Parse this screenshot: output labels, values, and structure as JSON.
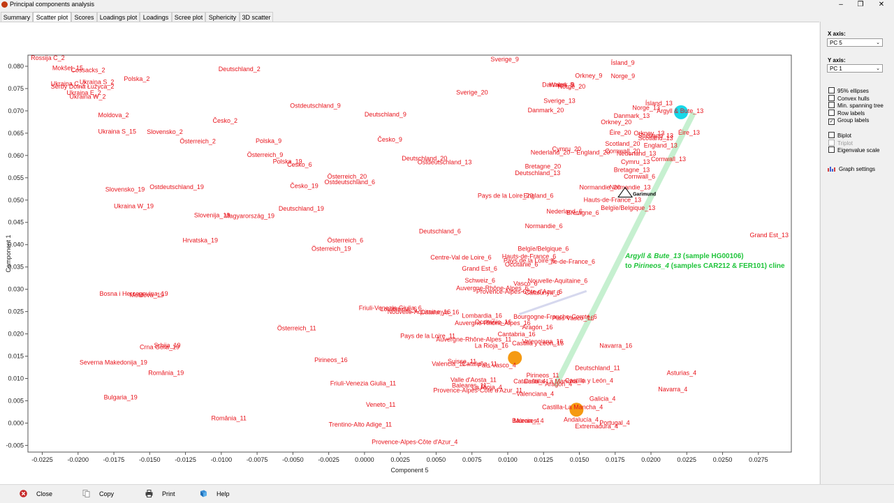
{
  "window": {
    "title": "Principal components analysis",
    "minimize": "–",
    "maximize": "❐",
    "close": "✕"
  },
  "tabs": [
    {
      "label": "Summary"
    },
    {
      "label": "Scatter plot"
    },
    {
      "label": "Scores"
    },
    {
      "label": "Loadings plot"
    },
    {
      "label": "Loadings"
    },
    {
      "label": "Scree plot"
    },
    {
      "label": "Sphericity"
    },
    {
      "label": "3D scatter"
    }
  ],
  "panel": {
    "x_axis_label": "X axis:",
    "x_axis_value": "PC 5",
    "y_axis_label": "Y axis:",
    "y_axis_value": "PC 1",
    "checkboxes": [
      {
        "label": "95% ellipses",
        "checked": false,
        "disabled": false
      },
      {
        "label": "Convex hulls",
        "checked": false,
        "disabled": false
      },
      {
        "label": "Min. spanning tree",
        "checked": false,
        "disabled": false
      },
      {
        "label": "Row labels",
        "checked": false,
        "disabled": false
      },
      {
        "label": "Group labels",
        "checked": true,
        "disabled": false
      },
      {
        "label": "Biplot",
        "checked": false,
        "disabled": false
      },
      {
        "label": "Triplot",
        "checked": false,
        "disabled": true
      },
      {
        "label": "Eigenvalue scale",
        "checked": false,
        "disabled": false
      }
    ],
    "graph_settings": "Graph settings"
  },
  "bottom": {
    "close": "Close",
    "copy": "Copy",
    "print": "Print",
    "help": "Help"
  },
  "colors": {
    "label": "#e8141c",
    "cline": "#c6f0d0",
    "cline_text": "#1ec43a",
    "cyan": "#18d8e8",
    "orange": "#f59a12"
  },
  "chart_data": {
    "type": "scatter",
    "xlabel": "Component 5",
    "ylabel": "Component 1",
    "xlim": [
      -0.0235,
      0.0298
    ],
    "ylim": [
      -0.0065,
      0.0825
    ],
    "xticks": [
      -0.0225,
      -0.02,
      -0.0175,
      -0.015,
      -0.0125,
      -0.01,
      -0.0075,
      -0.005,
      -0.0025,
      0.0,
      0.0025,
      0.005,
      0.0075,
      0.01,
      0.0125,
      0.015,
      0.0175,
      0.02,
      0.0225,
      0.025,
      0.0275
    ],
    "xtick_labels": [
      "-0.0225",
      "-0.0200",
      "-0.0175",
      "-0.0150",
      "-0.0125",
      "-0.0100",
      "-0.0075",
      "-0.0050",
      "-0.0025",
      "0.0000",
      "0.0025",
      "0.0050",
      "0.0075",
      "0.0100",
      "0.0125",
      "0.0150",
      "0.0175",
      "0.0200",
      "0.0225",
      "0.0250",
      "0.0275"
    ],
    "yticks": [
      -0.005,
      0.0,
      0.005,
      0.01,
      0.015,
      0.02,
      0.025,
      0.03,
      0.035,
      0.04,
      0.045,
      0.05,
      0.055,
      0.06,
      0.065,
      0.07,
      0.075,
      0.08
    ],
    "ytick_labels": [
      "-0.005",
      "0.000",
      "0.005",
      "0.010",
      "0.015",
      "0.020",
      "0.025",
      "0.030",
      "0.035",
      "0.040",
      "0.045",
      "0.050",
      "0.055",
      "0.060",
      "0.065",
      "0.070",
      "0.075",
      "0.080"
    ],
    "grid": false,
    "group_labels": [
      {
        "t": "Rossija C_2",
        "x": -0.0233,
        "y": 0.0814
      },
      {
        "t": "Mokšet_15",
        "x": -0.0218,
        "y": 0.0791
      },
      {
        "t": "Cossacks_2",
        "x": -0.0205,
        "y": 0.0787
      },
      {
        "t": "Polska_2",
        "x": -0.0168,
        "y": 0.0767
      },
      {
        "t": "Ukraina S_2",
        "x": -0.0199,
        "y": 0.076
      },
      {
        "t": "Ukraina C_2",
        "x": -0.0219,
        "y": 0.0756
      },
      {
        "t": "Serby Dolna Łužyca_2",
        "x": -0.0219,
        "y": 0.075
      },
      {
        "t": "Ukraina E_2",
        "x": -0.0208,
        "y": 0.0736
      },
      {
        "t": "Ukraina W_2",
        "x": -0.0206,
        "y": 0.0727
      },
      {
        "t": "Moldova_2",
        "x": -0.0186,
        "y": 0.0686
      },
      {
        "t": "Ukraina S_15",
        "x": -0.0186,
        "y": 0.0649
      },
      {
        "t": "Slovensko_2",
        "x": -0.0152,
        "y": 0.0648
      },
      {
        "t": "Österreich_2",
        "x": -0.0129,
        "y": 0.0627
      },
      {
        "t": "Česko_2",
        "x": -0.0106,
        "y": 0.0673
      },
      {
        "t": "Deutschland_2",
        "x": -0.0102,
        "y": 0.0789
      },
      {
        "t": "Ostdeutschland_9",
        "x": -0.0052,
        "y": 0.0707
      },
      {
        "t": "Deutschland_9",
        "x": 0.0,
        "y": 0.0687
      },
      {
        "t": "Polska_9",
        "x": -0.0076,
        "y": 0.0628
      },
      {
        "t": "Česko_9",
        "x": 0.0009,
        "y": 0.0631
      },
      {
        "t": "Österreich_9",
        "x": -0.0082,
        "y": 0.0597
      },
      {
        "t": "Polska_19",
        "x": -0.0064,
        "y": 0.0582
      },
      {
        "t": "Česko_6",
        "x": -0.0054,
        "y": 0.0575
      },
      {
        "t": "Österreich_20",
        "x": -0.0026,
        "y": 0.0548
      },
      {
        "t": "Ostdeutschland_6",
        "x": -0.0028,
        "y": 0.0536
      },
      {
        "t": "Česko_19",
        "x": -0.0052,
        "y": 0.0527
      },
      {
        "t": "Deutschland_20",
        "x": 0.0026,
        "y": 0.0589
      },
      {
        "t": "Ostdeutschland_13",
        "x": 0.0037,
        "y": 0.058
      },
      {
        "t": "Sverige_9",
        "x": 0.0088,
        "y": 0.0811
      },
      {
        "t": "Sverige_20",
        "x": 0.0064,
        "y": 0.0737
      },
      {
        "t": "Ísland_9",
        "x": 0.0172,
        "y": 0.0803
      },
      {
        "t": "Orkney_9",
        "x": 0.0147,
        "y": 0.0774
      },
      {
        "t": "Norge_9",
        "x": 0.0172,
        "y": 0.0773
      },
      {
        "t": "Danmark_9",
        "x": 0.0124,
        "y": 0.0754
      },
      {
        "t": "Wales_9",
        "x": 0.0129,
        "y": 0.0754
      },
      {
        "t": "Norge_20",
        "x": 0.0135,
        "y": 0.075
      },
      {
        "t": "Sverige_13",
        "x": 0.0125,
        "y": 0.0718
      },
      {
        "t": "Danmark_20",
        "x": 0.0114,
        "y": 0.0697
      },
      {
        "t": "Ísland_13",
        "x": 0.0196,
        "y": 0.0712
      },
      {
        "t": "Norge_13",
        "x": 0.0187,
        "y": 0.0702
      },
      {
        "t": "Argyll & Bute_13",
        "x": 0.0204,
        "y": 0.0695
      },
      {
        "t": "Danmark_13",
        "x": 0.0174,
        "y": 0.0684
      },
      {
        "t": "Orkney_20",
        "x": 0.0165,
        "y": 0.067
      },
      {
        "t": "Éire_20",
        "x": 0.0171,
        "y": 0.0647
      },
      {
        "t": "Orkney_13",
        "x": 0.0188,
        "y": 0.0645
      },
      {
        "t": "Shetland_13",
        "x": 0.0191,
        "y": 0.064
      },
      {
        "t": "Éire_13",
        "x": 0.0219,
        "y": 0.0647
      },
      {
        "t": "Scotland_13",
        "x": 0.0191,
        "y": 0.0634
      },
      {
        "t": "Scotland_20",
        "x": 0.0168,
        "y": 0.0622
      },
      {
        "t": "England_13",
        "x": 0.0195,
        "y": 0.0618
      },
      {
        "t": "Cymru_20",
        "x": 0.0131,
        "y": 0.061
      },
      {
        "t": "Nederland_20",
        "x": 0.0116,
        "y": 0.0602
      },
      {
        "t": "England_20",
        "x": 0.0148,
        "y": 0.0602
      },
      {
        "t": "Cornwall_20",
        "x": 0.0168,
        "y": 0.0605
      },
      {
        "t": "Nederland_13",
        "x": 0.0176,
        "y": 0.06
      },
      {
        "t": "Cornwall_13",
        "x": 0.02,
        "y": 0.0587
      },
      {
        "t": "Cymru_13",
        "x": 0.0179,
        "y": 0.0581
      },
      {
        "t": "Bretagne_20",
        "x": 0.0112,
        "y": 0.0571
      },
      {
        "t": "Bretagne_13",
        "x": 0.0174,
        "y": 0.0563
      },
      {
        "t": "Deutschland_13",
        "x": 0.0105,
        "y": 0.0556
      },
      {
        "t": "Cornwall_6",
        "x": 0.0181,
        "y": 0.0548
      },
      {
        "t": "Normandie_20",
        "x": 0.015,
        "y": 0.0524
      },
      {
        "t": "Normandie_13",
        "x": 0.0171,
        "y": 0.0524
      },
      {
        "t": "Pays de la Loire_20",
        "x": 0.0079,
        "y": 0.0505
      },
      {
        "t": "England_6",
        "x": 0.0111,
        "y": 0.0505
      },
      {
        "t": "Hauts-de-France_13",
        "x": 0.0153,
        "y": 0.0496
      },
      {
        "t": "Belgïe/Belgique_13",
        "x": 0.0165,
        "y": 0.0478
      },
      {
        "t": "Nederland_6",
        "x": 0.0127,
        "y": 0.047
      },
      {
        "t": "Bretagne_6",
        "x": 0.0141,
        "y": 0.0467
      },
      {
        "t": "Normandie_6",
        "x": 0.0112,
        "y": 0.0437
      },
      {
        "t": "Grand Est_13",
        "x": 0.0269,
        "y": 0.0417
      },
      {
        "t": "Ostdeutschland_19",
        "x": -0.015,
        "y": 0.0525
      },
      {
        "t": "Slovensko_19",
        "x": -0.0181,
        "y": 0.0519
      },
      {
        "t": "Ukraina W_19",
        "x": -0.0175,
        "y": 0.0482
      },
      {
        "t": "Slovenija_19",
        "x": -0.0119,
        "y": 0.0461
      },
      {
        "t": "Magyarország_19",
        "x": -0.0098,
        "y": 0.046
      },
      {
        "t": "Deutschland_19",
        "x": -0.006,
        "y": 0.0476
      },
      {
        "t": "Deutschland_6",
        "x": 0.0038,
        "y": 0.0425
      },
      {
        "t": "Hrvatska_19",
        "x": -0.0127,
        "y": 0.0405
      },
      {
        "t": "Österreich_6",
        "x": -0.0026,
        "y": 0.0405
      },
      {
        "t": "Österreich_19",
        "x": -0.0037,
        "y": 0.0386
      },
      {
        "t": "Belgïe/Belgique_6",
        "x": 0.0107,
        "y": 0.0386
      },
      {
        "t": "Centre-Val de Loire_6",
        "x": 0.0046,
        "y": 0.0367
      },
      {
        "t": "Hauts-de-France_6",
        "x": 0.0096,
        "y": 0.0369
      },
      {
        "t": "Pays de la Loire_6",
        "x": 0.0097,
        "y": 0.036
      },
      {
        "t": "Île-de-France_6",
        "x": 0.013,
        "y": 0.0357
      },
      {
        "t": "Occitanie_6",
        "x": 0.0098,
        "y": 0.0351
      },
      {
        "t": "Grand Est_6",
        "x": 0.0068,
        "y": 0.0342
      },
      {
        "t": "Schweiz_6",
        "x": 0.007,
        "y": 0.0315
      },
      {
        "t": "Nouvelle-Aquitaine_6",
        "x": 0.0114,
        "y": 0.0314
      },
      {
        "t": "Vasco_6",
        "x": 0.0104,
        "y": 0.0308
      },
      {
        "t": "Auvergne-Rhône-Alpes_6",
        "x": 0.0064,
        "y": 0.0298
      },
      {
        "t": "Provence-Alpes-Côte d'Azur_6",
        "x": 0.0078,
        "y": 0.029
      },
      {
        "t": "Catalunya_6",
        "x": 0.0112,
        "y": 0.0288
      },
      {
        "t": "Bosna i Hercegovina_19",
        "x": -0.0185,
        "y": 0.0285
      },
      {
        "t": "Moldova_19",
        "x": -0.0164,
        "y": 0.0282
      },
      {
        "t": "Friuli-Venezia Giulia_6",
        "x": -0.0004,
        "y": 0.0253
      },
      {
        "t": "Lombardia_6",
        "x": 0.0011,
        "y": 0.0251
      },
      {
        "t": "Nouvelle-Aquitaine_16",
        "x": 0.0016,
        "y": 0.0245
      },
      {
        "t": "Catalunya_16",
        "x": 0.0039,
        "y": 0.0244
      },
      {
        "t": "Lombardia_16",
        "x": 0.0068,
        "y": 0.0236
      },
      {
        "t": "Bourgogne-Franche-Comté_6",
        "x": 0.0104,
        "y": 0.0234
      },
      {
        "t": "País Vasco_16",
        "x": 0.0131,
        "y": 0.0231
      },
      {
        "t": "Auvergne-Rhône-Alpes_16",
        "x": 0.0063,
        "y": 0.022
      },
      {
        "t": "Occitanie_16",
        "x": 0.0077,
        "y": 0.0222
      },
      {
        "t": "Aragón_16",
        "x": 0.011,
        "y": 0.021
      },
      {
        "t": "Österreich_11",
        "x": -0.0061,
        "y": 0.0208
      },
      {
        "t": "Cantabria_16",
        "x": 0.0093,
        "y": 0.0195
      },
      {
        "t": "Pays de la Loire_11",
        "x": 0.0025,
        "y": 0.0191
      },
      {
        "t": "Auvergne-Rhône-Alpes_11",
        "x": 0.005,
        "y": 0.0183
      },
      {
        "t": "Valenciana_16",
        "x": 0.011,
        "y": 0.0178
      },
      {
        "t": "Castilla y León_16",
        "x": 0.0103,
        "y": 0.0174
      },
      {
        "t": "La Rioja_16",
        "x": 0.0077,
        "y": 0.0169
      },
      {
        "t": "Navarra_16",
        "x": 0.0164,
        "y": 0.0169
      },
      {
        "t": "Srbija_19",
        "x": -0.0147,
        "y": 0.017
      },
      {
        "t": "Crna Gora_19",
        "x": -0.0157,
        "y": 0.0166
      },
      {
        "t": "Pirineos_16",
        "x": -0.0035,
        "y": 0.0137
      },
      {
        "t": "Suisse_11",
        "x": 0.0058,
        "y": 0.0134
      },
      {
        "t": "Valencia_11",
        "x": 0.0047,
        "y": 0.0128
      },
      {
        "t": "Cataluña_11",
        "x": 0.0068,
        "y": 0.0128
      },
      {
        "t": "País Vasco_4",
        "x": 0.0079,
        "y": 0.0125
      },
      {
        "t": "Severna Makedonija_19",
        "x": -0.0199,
        "y": 0.0131
      },
      {
        "t": "Deutschland_11",
        "x": 0.0147,
        "y": 0.0119
      },
      {
        "t": "România_19",
        "x": -0.0151,
        "y": 0.0108
      },
      {
        "t": "Pirineos_11",
        "x": 0.0113,
        "y": 0.0102
      },
      {
        "t": "Asturias_4",
        "x": 0.0211,
        "y": 0.0108
      },
      {
        "t": "Valle d'Aosta_11",
        "x": 0.006,
        "y": 0.0092
      },
      {
        "t": "Cataluña_4",
        "x": 0.0104,
        "y": 0.0089
      },
      {
        "t": "Castilla-La Mancha_4",
        "x": 0.0111,
        "y": 0.0089
      },
      {
        "t": "Aragón_4",
        "x": 0.0126,
        "y": 0.0083
      },
      {
        "t": "Castilla y León_4",
        "x": 0.014,
        "y": 0.0091
      },
      {
        "t": "Friuli-Venezia Giulia_11",
        "x": -0.0024,
        "y": 0.0084
      },
      {
        "t": "Baleares_11",
        "x": 0.0061,
        "y": 0.008
      },
      {
        "t": "La Rioja_4",
        "x": 0.0075,
        "y": 0.0076
      },
      {
        "t": "Provence-Alpes-Côte d'Azur_11",
        "x": 0.0048,
        "y": 0.0069
      },
      {
        "t": "Valenciana_4",
        "x": 0.0106,
        "y": 0.0061
      },
      {
        "t": "Navarra_4",
        "x": 0.0205,
        "y": 0.0071
      },
      {
        "t": "Bulgaria_19",
        "x": -0.0182,
        "y": 0.0053
      },
      {
        "t": "Galicia_4",
        "x": 0.0157,
        "y": 0.005
      },
      {
        "t": "Veneto_11",
        "x": 0.0001,
        "y": 0.0037
      },
      {
        "t": "Castilla-La Mancha_4",
        "x": 0.0124,
        "y": 0.0031
      },
      {
        "t": "România_11",
        "x": -0.0107,
        "y": 0.0006
      },
      {
        "t": "Baleares_4",
        "x": 0.0103,
        "y": 0.0001
      },
      {
        "t": "Murcia_4",
        "x": 0.0104,
        "y": 0.0001
      },
      {
        "t": "Andalucía_4",
        "x": 0.0139,
        "y": 0.0003
      },
      {
        "t": "Portugal_4",
        "x": 0.0164,
        "y": -0.0004
      },
      {
        "t": "Extremadura_4",
        "x": 0.0147,
        "y": -0.0012
      },
      {
        "t": "Trentino-Alto Adige_11",
        "x": -0.0025,
        "y": -0.0008
      },
      {
        "t": "Provence-Alpes-Côte d'Azur_4",
        "x": 0.0005,
        "y": -0.0047
      }
    ],
    "highlight_points": [
      {
        "x": 0.0221,
        "y": 0.0697,
        "color": "#18d8e8"
      },
      {
        "x": 0.0105,
        "y": 0.0146,
        "color": "#f59a12"
      },
      {
        "x": 0.0148,
        "y": 0.003,
        "color": "#f59a12"
      }
    ],
    "marker": {
      "label": "Garimund",
      "x": 0.0182,
      "y": 0.0516
    },
    "cline": {
      "from": [
        0.0229,
        0.0691
      ],
      "to": [
        0.0134,
        0.0088
      ]
    },
    "faint_line": {
      "from": [
        0.0108,
        0.0244
      ],
      "to": [
        0.0155,
        0.0296
      ]
    },
    "annotation": {
      "line1_name": "Argyll & Bute_13",
      "line1_rest": " (sample HG00106)",
      "line2_pre": "to ",
      "line2_name": "Pirineos_4",
      "line2_rest": " (samples CAR212 & FER101) cline",
      "x": 0.0182,
      "y": 0.037
    }
  }
}
